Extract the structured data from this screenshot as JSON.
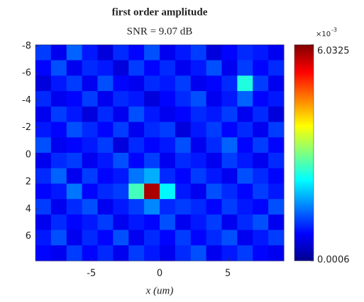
{
  "chart_data": {
    "type": "heatmap",
    "title": "first order amplitude",
    "subtitle": "SNR = 9.07 dB",
    "xlabel": "x (um)",
    "xlim": [
      -9.1,
      9.1
    ],
    "xticks": [
      -5,
      0,
      5
    ],
    "ylim": [
      -8.1,
      7.8
    ],
    "yticks": [
      -8,
      -6,
      -4,
      -2,
      0,
      2,
      4,
      6
    ],
    "y_reversed": true,
    "colormap": "jet",
    "clim": [
      0.0006,
      0.0060325
    ],
    "colorbar_ticks": [
      {
        "value": 0.0060325,
        "label": "6.0325"
      },
      0.0006
    ],
    "colorbar_multiplier": "×10",
    "colorbar_exponent": "-3",
    "z": [
      [
        0.0016,
        0.0012,
        0.0018,
        0.0014,
        0.0011,
        0.0015,
        0.0013,
        0.0017,
        0.0012,
        0.0014,
        0.0016,
        0.0011,
        0.0013,
        0.0015,
        0.0014,
        0.0012
      ],
      [
        0.0013,
        0.0017,
        0.0012,
        0.0015,
        0.0014,
        0.0011,
        0.0016,
        0.0013,
        0.0015,
        0.0012,
        0.0014,
        0.0017,
        0.0012,
        0.0016,
        0.0013,
        0.0015
      ],
      [
        0.0011,
        0.0014,
        0.0016,
        0.0012,
        0.0017,
        0.0013,
        0.0012,
        0.0015,
        0.0014,
        0.0016,
        0.0012,
        0.0013,
        0.0015,
        0.0028,
        0.0016,
        0.0012
      ],
      [
        0.0015,
        0.0012,
        0.0013,
        0.0016,
        0.0012,
        0.0015,
        0.0014,
        0.0011,
        0.0013,
        0.0015,
        0.0017,
        0.0012,
        0.0014,
        0.0018,
        0.0013,
        0.0014
      ],
      [
        0.0012,
        0.0016,
        0.0014,
        0.0011,
        0.0015,
        0.0012,
        0.0017,
        0.0014,
        0.0012,
        0.0013,
        0.0015,
        0.0014,
        0.0016,
        0.0012,
        0.0015,
        0.0011
      ],
      [
        0.0014,
        0.0013,
        0.0017,
        0.0015,
        0.0013,
        0.0016,
        0.0012,
        0.0015,
        0.0016,
        0.0011,
        0.0014,
        0.0016,
        0.0013,
        0.0015,
        0.0012,
        0.0016
      ],
      [
        0.0017,
        0.0012,
        0.0013,
        0.0014,
        0.0016,
        0.0011,
        0.0015,
        0.0013,
        0.0014,
        0.0017,
        0.0012,
        0.0015,
        0.0018,
        0.0013,
        0.0016,
        0.0013
      ],
      [
        0.0012,
        0.0015,
        0.0016,
        0.0012,
        0.0014,
        0.0017,
        0.0013,
        0.0016,
        0.0012,
        0.0015,
        0.0014,
        0.0012,
        0.0016,
        0.0014,
        0.0012,
        0.0015
      ],
      [
        0.0015,
        0.0018,
        0.0012,
        0.0016,
        0.0013,
        0.0014,
        0.0019,
        0.0022,
        0.0015,
        0.0013,
        0.0016,
        0.0014,
        0.0012,
        0.0017,
        0.0015,
        0.0013
      ],
      [
        0.0013,
        0.0014,
        0.0019,
        0.0013,
        0.0015,
        0.0016,
        0.003,
        0.0058,
        0.0026,
        0.0014,
        0.0012,
        0.0017,
        0.0015,
        0.0013,
        0.0016,
        0.0014
      ],
      [
        0.0016,
        0.0012,
        0.0015,
        0.0017,
        0.0012,
        0.0014,
        0.0016,
        0.002,
        0.0015,
        0.0016,
        0.0015,
        0.0013,
        0.0016,
        0.0014,
        0.0013,
        0.0017
      ],
      [
        0.0012,
        0.0015,
        0.0013,
        0.0014,
        0.0016,
        0.0012,
        0.0014,
        0.0013,
        0.0017,
        0.0012,
        0.0014,
        0.0016,
        0.0012,
        0.0015,
        0.0017,
        0.0012
      ],
      [
        0.0014,
        0.0017,
        0.0012,
        0.0015,
        0.0013,
        0.0017,
        0.0012,
        0.0015,
        0.0013,
        0.0016,
        0.0013,
        0.0015,
        0.0017,
        0.0012,
        0.0014,
        0.0016
      ],
      [
        0.0013,
        0.0012,
        0.0016,
        0.0013,
        0.0015,
        0.0012,
        0.0016,
        0.0014,
        0.0012,
        0.0015,
        0.0017,
        0.0012,
        0.0014,
        0.0016,
        0.0013,
        0.0012
      ]
    ]
  }
}
